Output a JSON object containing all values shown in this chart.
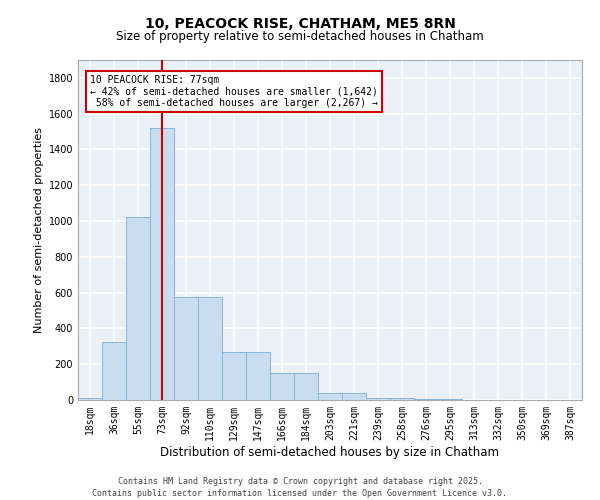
{
  "title1": "10, PEACOCK RISE, CHATHAM, ME5 8RN",
  "title2": "Size of property relative to semi-detached houses in Chatham",
  "xlabel": "Distribution of semi-detached houses by size in Chatham",
  "ylabel": "Number of semi-detached properties",
  "categories": [
    "18sqm",
    "36sqm",
    "55sqm",
    "73sqm",
    "92sqm",
    "110sqm",
    "129sqm",
    "147sqm",
    "166sqm",
    "184sqm",
    "203sqm",
    "221sqm",
    "239sqm",
    "258sqm",
    "276sqm",
    "295sqm",
    "313sqm",
    "332sqm",
    "350sqm",
    "369sqm",
    "387sqm"
  ],
  "values": [
    10,
    325,
    1020,
    1520,
    575,
    575,
    270,
    270,
    150,
    150,
    38,
    38,
    12,
    12,
    3,
    3,
    0,
    0,
    0,
    0,
    0
  ],
  "bar_color": "#c8ddf0",
  "bar_edge_color": "#8ab4d8",
  "vline_x_index": 3,
  "vline_color": "#cc0000",
  "annotation_line1": "10 PEACOCK RISE: 77sqm",
  "annotation_line2": "← 42% of semi-detached houses are smaller (1,642)",
  "annotation_line3": " 58% of semi-detached houses are larger (2,267) →",
  "annotation_box_edgecolor": "#cc0000",
  "ylim_min": 0,
  "ylim_max": 1900,
  "yticks": [
    0,
    200,
    400,
    600,
    800,
    1000,
    1200,
    1400,
    1600,
    1800
  ],
  "footer": "Contains HM Land Registry data © Crown copyright and database right 2025.\nContains public sector information licensed under the Open Government Licence v3.0.",
  "bg_color": "#eaf0f8",
  "grid_color": "#ffffff",
  "title1_fontsize": 10,
  "title2_fontsize": 8.5,
  "ylabel_fontsize": 8,
  "xlabel_fontsize": 8.5,
  "tick_fontsize": 7,
  "ann_fontsize": 7,
  "footer_fontsize": 6
}
